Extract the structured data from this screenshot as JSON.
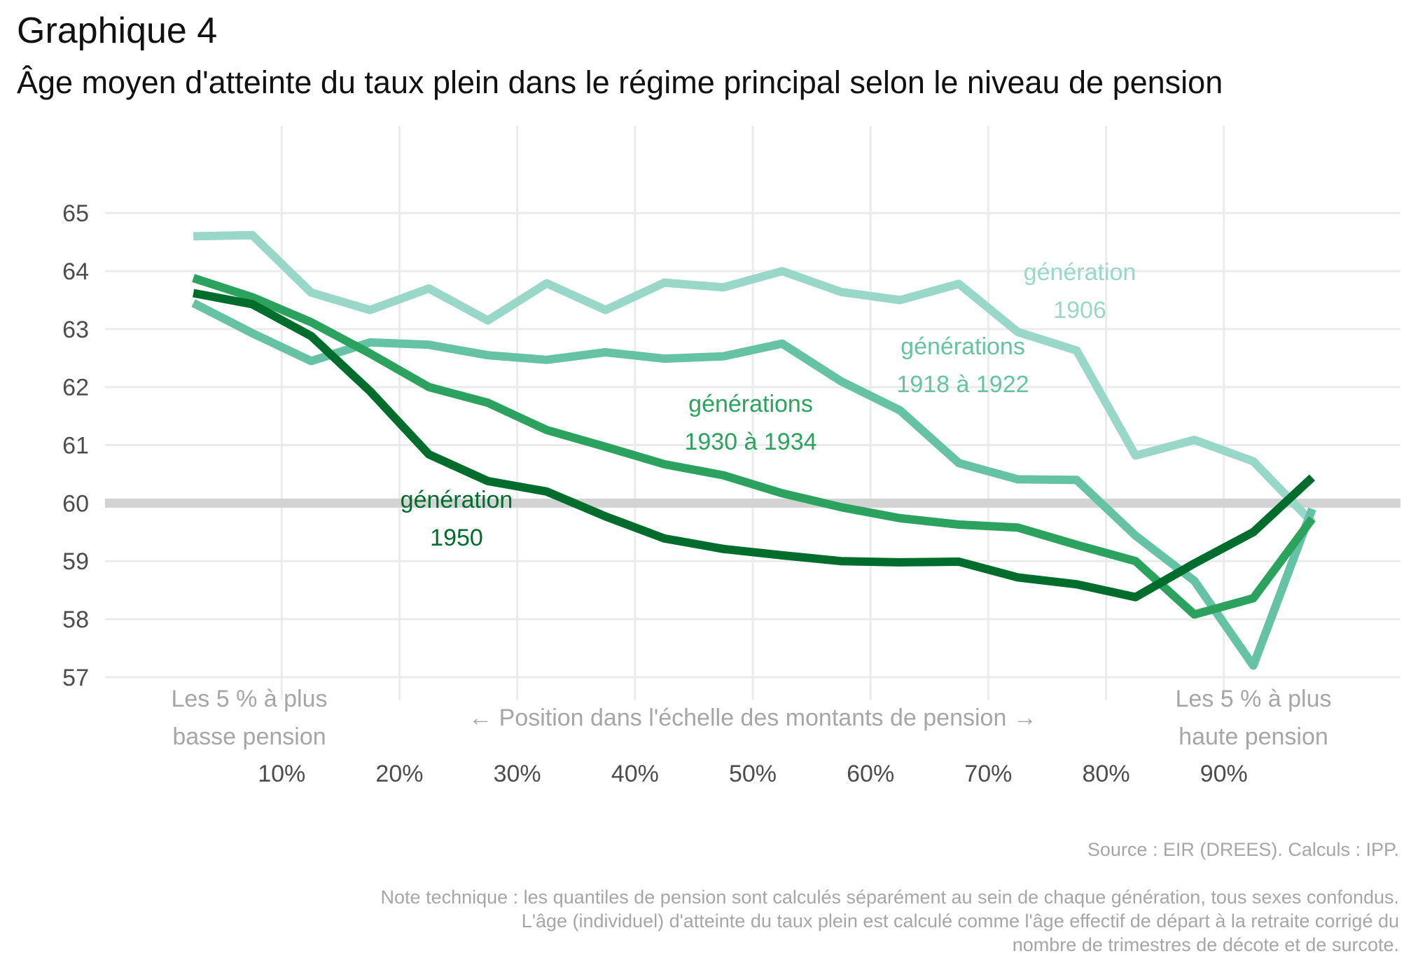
{
  "title": "Graphique 4",
  "subtitle": "Âge moyen d'atteinte du taux plein dans le régime principal selon le niveau de pension",
  "caption": {
    "source": "Source : EIR (DREES). Calculs : IPP.",
    "note_lines": [
      "Note technique : les quantiles de pension sont calculés séparément au sein de chaque génération, tous sexes confondus.",
      "L'âge (individuel) d'atteinte du taux plein est calculé comme l'âge effectif de départ à la retraite corrigé du",
      "nombre de trimestres de décote et de surcote."
    ]
  },
  "annotations": {
    "left": [
      "Les 5 % à plus",
      "basse pension"
    ],
    "right": [
      "Les 5 % à plus",
      "haute pension"
    ],
    "axis": "← Position dans l'échelle des montants de pension →"
  },
  "chart_data": {
    "type": "line",
    "x": [
      2.5,
      7.5,
      12.5,
      17.5,
      22.5,
      27.5,
      32.5,
      37.5,
      42.5,
      47.5,
      52.5,
      57.5,
      62.5,
      67.5,
      72.5,
      77.5,
      82.5,
      87.5,
      92.5,
      97.5
    ],
    "x_ticks": [
      10,
      20,
      30,
      40,
      50,
      60,
      70,
      80,
      90
    ],
    "x_tick_labels": [
      "10%",
      "20%",
      "30%",
      "40%",
      "50%",
      "60%",
      "70%",
      "80%",
      "90%"
    ],
    "xlim": [
      -5,
      105
    ],
    "y_ticks": [
      57,
      58,
      59,
      60,
      61,
      62,
      63,
      64,
      65
    ],
    "ylim": [
      56.6,
      66.5
    ],
    "reference_line": 60,
    "grid": true,
    "series": [
      {
        "name": "génération 1906",
        "label_lines": [
          "génération",
          "1906"
        ],
        "color": "#99d8c9",
        "values": [
          64.6,
          64.62,
          63.63,
          63.33,
          63.7,
          63.15,
          63.79,
          63.33,
          63.8,
          63.72,
          64.0,
          63.64,
          63.5,
          63.78,
          62.95,
          62.63,
          60.82,
          61.09,
          60.72,
          59.67
        ]
      },
      {
        "name": "générations 1918 à 1922",
        "label_lines": [
          "générations",
          "1918 à 1922"
        ],
        "color": "#66c2a4",
        "values": [
          63.45,
          62.93,
          62.45,
          62.77,
          62.73,
          62.55,
          62.47,
          62.6,
          62.49,
          62.53,
          62.75,
          62.1,
          61.6,
          60.69,
          60.41,
          60.4,
          59.44,
          58.66,
          57.2,
          59.9
        ]
      },
      {
        "name": "générations 1930 à 1934",
        "label_lines": [
          "générations",
          "1930 à 1934"
        ],
        "color": "#2ca25f",
        "values": [
          63.88,
          63.55,
          63.12,
          62.58,
          62.0,
          61.73,
          61.26,
          60.97,
          60.67,
          60.48,
          60.17,
          59.93,
          59.74,
          59.63,
          59.58,
          59.28,
          59.0,
          58.08,
          58.36,
          59.73
        ]
      },
      {
        "name": "génération 1950",
        "label_lines": [
          "génération",
          "1950"
        ],
        "color": "#006d2c",
        "values": [
          63.62,
          63.43,
          62.88,
          61.93,
          60.84,
          60.38,
          60.2,
          59.77,
          59.39,
          59.21,
          59.1,
          59.0,
          58.98,
          58.99,
          58.72,
          58.6,
          58.38,
          58.96,
          59.5,
          60.44
        ]
      }
    ]
  }
}
